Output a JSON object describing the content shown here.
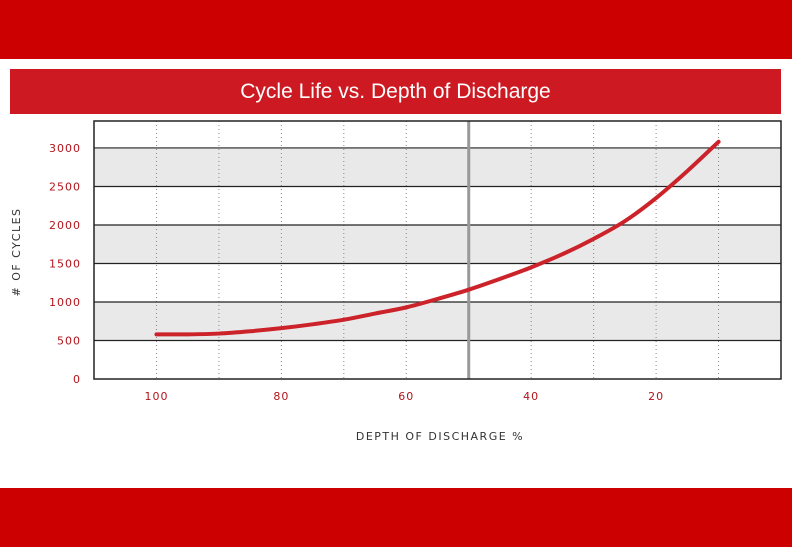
{
  "header": {
    "title": "Cycle Life vs. Depth of Discharge"
  },
  "colors": {
    "accent": "#cc0000",
    "title_bar": "#cd1a22",
    "line": "#cc2229",
    "tick_text": "#b3141b",
    "band_gray": "#e9e9ea"
  },
  "chart_data": {
    "type": "line",
    "title": "Cycle Life vs. Depth of Discharge",
    "xlabel": "DEPTH OF DISCHARGE %",
    "ylabel": "# OF CYCLES",
    "x_reversed": true,
    "xlim": [
      110,
      0
    ],
    "ylim": [
      0,
      3350
    ],
    "xticks": [
      100,
      80,
      60,
      40,
      20
    ],
    "yticks": [
      0,
      500,
      1000,
      1500,
      2000,
      2500,
      3000
    ],
    "grid": true,
    "reference_line_x": 50,
    "series": [
      {
        "x": [
          100,
          95,
          90,
          85,
          80,
          75,
          70,
          65,
          60,
          55,
          50,
          45,
          40,
          35,
          30,
          25,
          20,
          15,
          10
        ],
        "y": [
          580,
          580,
          590,
          620,
          660,
          710,
          770,
          850,
          930,
          1040,
          1160,
          1300,
          1450,
          1620,
          1820,
          2050,
          2350,
          2700,
          3080
        ]
      }
    ]
  }
}
